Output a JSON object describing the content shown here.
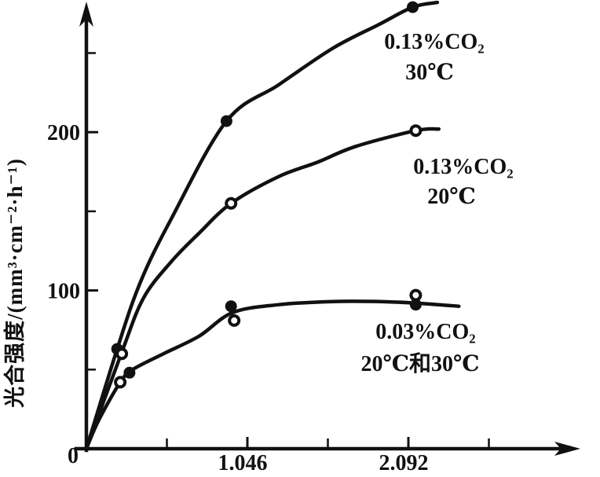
{
  "figure": {
    "background_color": "#ffffff",
    "ink_color": "#111111",
    "description": "Scanned textbook line chart: photosynthesis intensity vs light intensity for different CO2 concentrations and temperatures"
  },
  "chart_data": {
    "type": "line",
    "title": "",
    "xlabel": "",
    "ylabel": "光合强度/(mm³·cm⁻²·h⁻¹)",
    "xlim": [
      0,
      3.2
    ],
    "ylim": [
      0,
      290
    ],
    "grid": false,
    "legend_position": "inline-annotations",
    "x_ticks": {
      "major": [
        {
          "value": 1.046,
          "label": "1.046"
        },
        {
          "value": 2.092,
          "label": "2.092"
        }
      ],
      "minor": [
        0.523,
        1.569,
        2.615
      ]
    },
    "y_ticks": {
      "major": [
        {
          "value": 100,
          "label": "100"
        },
        {
          "value": 200,
          "label": "200"
        }
      ],
      "minor": [
        50,
        150,
        250
      ],
      "origin_label": "0"
    },
    "series": [
      {
        "name": "0.13%CO₂ 30℃",
        "marker_style": "filled-circle",
        "curve": [
          [
            0,
            0
          ],
          [
            0.2,
            63
          ],
          [
            0.35,
            105
          ],
          [
            0.55,
            145
          ],
          [
            0.91,
            207
          ],
          [
            1.25,
            230
          ],
          [
            1.6,
            253
          ],
          [
            1.9,
            268
          ],
          [
            2.12,
            279
          ],
          [
            2.28,
            282
          ]
        ],
        "points": [
          {
            "x": 0.2,
            "y": 63,
            "marker": "filled"
          },
          {
            "x": 0.91,
            "y": 207,
            "marker": "filled"
          },
          {
            "x": 2.12,
            "y": 279,
            "marker": "filled"
          }
        ]
      },
      {
        "name": "0.13%CO₂ 20℃",
        "marker_style": "open-circle",
        "curve": [
          [
            0,
            0
          ],
          [
            0.23,
            61
          ],
          [
            0.37,
            95
          ],
          [
            0.55,
            118
          ],
          [
            0.73,
            136
          ],
          [
            0.94,
            155
          ],
          [
            1.25,
            172
          ],
          [
            1.5,
            181
          ],
          [
            1.75,
            191
          ],
          [
            2.14,
            201
          ],
          [
            2.29,
            202
          ]
        ],
        "points": [
          {
            "x": 0.23,
            "y": 60,
            "marker": "open"
          },
          {
            "x": 0.94,
            "y": 155,
            "marker": "open"
          },
          {
            "x": 2.14,
            "y": 201,
            "marker": "open"
          }
        ]
      },
      {
        "name": "0.03%CO₂ 20℃和30℃",
        "marker_style": "mixed",
        "curve": [
          [
            0,
            0
          ],
          [
            0.08,
            18
          ],
          [
            0.22,
            42
          ],
          [
            0.3,
            50
          ],
          [
            0.5,
            60
          ],
          [
            0.73,
            71
          ],
          [
            0.95,
            86
          ],
          [
            1.25,
            91
          ],
          [
            1.6,
            93
          ],
          [
            1.9,
            93
          ],
          [
            2.14,
            92
          ],
          [
            2.42,
            90
          ]
        ],
        "points": [
          {
            "x": 0.22,
            "y": 42,
            "marker": "open"
          },
          {
            "x": 0.28,
            "y": 48,
            "marker": "filled"
          },
          {
            "x": 0.94,
            "y": 90,
            "marker": "filled"
          },
          {
            "x": 0.96,
            "y": 81,
            "marker": "open"
          },
          {
            "x": 2.14,
            "y": 97,
            "marker": "open"
          },
          {
            "x": 2.14,
            "y": 91,
            "marker": "filled"
          }
        ]
      }
    ],
    "annotations": [
      {
        "line1": "0.13%CO₂",
        "line2": "30℃"
      },
      {
        "line1": "0.13%CO₂",
        "line2": "20℃"
      },
      {
        "line1": "0.03%CO₂",
        "line2": "20℃和30℃"
      }
    ]
  }
}
